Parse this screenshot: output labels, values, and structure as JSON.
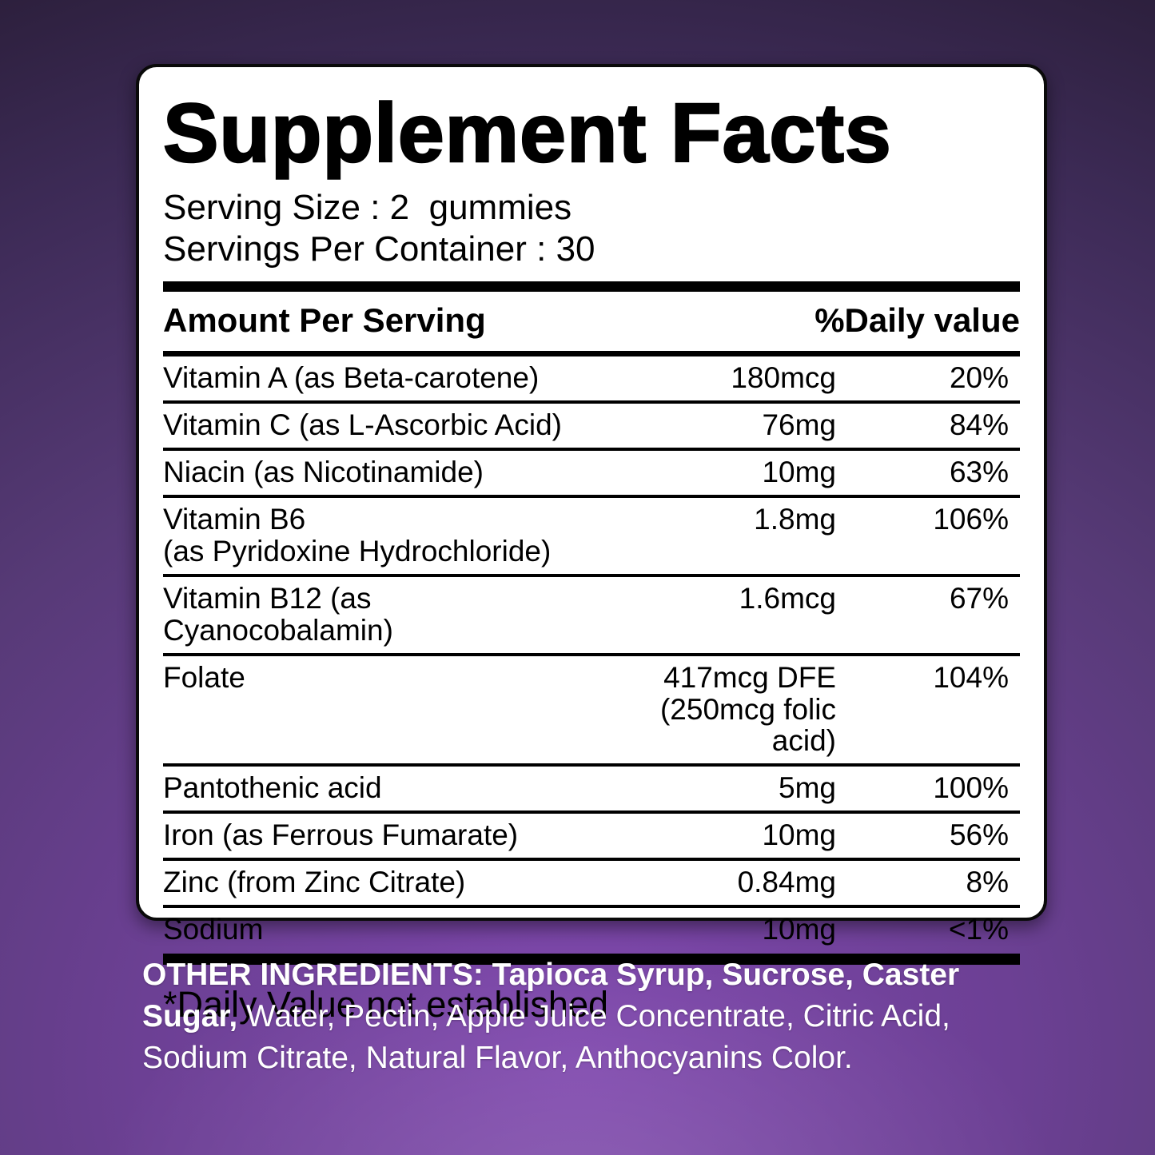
{
  "label": {
    "title": "Supplement Facts",
    "serving_size": "Serving Size : 2  gummies",
    "servings_per_container": "Servings Per Container : 30",
    "header": {
      "amount_col": "Amount Per Serving",
      "dv_col": "%Daily value"
    },
    "rows": [
      {
        "name": "Vitamin A (as Beta-carotene)",
        "amount": "180mcg",
        "dv": "20%"
      },
      {
        "name": "Vitamin C (as L-Ascorbic Acid)",
        "amount": "76mg",
        "dv": "84%"
      },
      {
        "name": "Niacin (as Nicotinamide)",
        "amount": "10mg",
        "dv": "63%"
      },
      {
        "name": "Vitamin B6",
        "name2": "(as Pyridoxine Hydrochloride)",
        "amount": "1.8mg",
        "dv": "106%"
      },
      {
        "name": "Vitamin B12 (as Cyanocobalamin)",
        "amount": "1.6mcg",
        "dv": "67%"
      },
      {
        "name": "Folate",
        "amount": "417mcg DFE",
        "amount2": "(250mcg folic acid)",
        "dv": "104%"
      },
      {
        "name": "Pantothenic acid",
        "amount": "5mg",
        "dv": "100%"
      },
      {
        "name": "Iron (as Ferrous Fumarate)",
        "amount": "10mg",
        "dv": "56%"
      },
      {
        "name": "Zinc (from Zinc Citrate)",
        "amount": "0.84mg",
        "dv": "8%"
      },
      {
        "name": "Sodium",
        "amount": "10mg",
        "dv": "<1%"
      }
    ],
    "footnote": "*Daily Value not established"
  },
  "other_ingredients": {
    "bold_segment": "OTHER INGREDIENTS: Tapioca Syrup, Sucrose, Caster Sugar,",
    "regular_segment": " Water, Pectin, Apple Juice Concentrate, Citric Acid, Sodium Citrate, Natural Flavor, Anthocyanins Color."
  },
  "colors": {
    "background_purple_bright": "#7e46ad",
    "background_purple_dark": "#201729",
    "panel_background": "#ffffff",
    "panel_text": "#000000",
    "ingredients_text": "#ffffff"
  }
}
